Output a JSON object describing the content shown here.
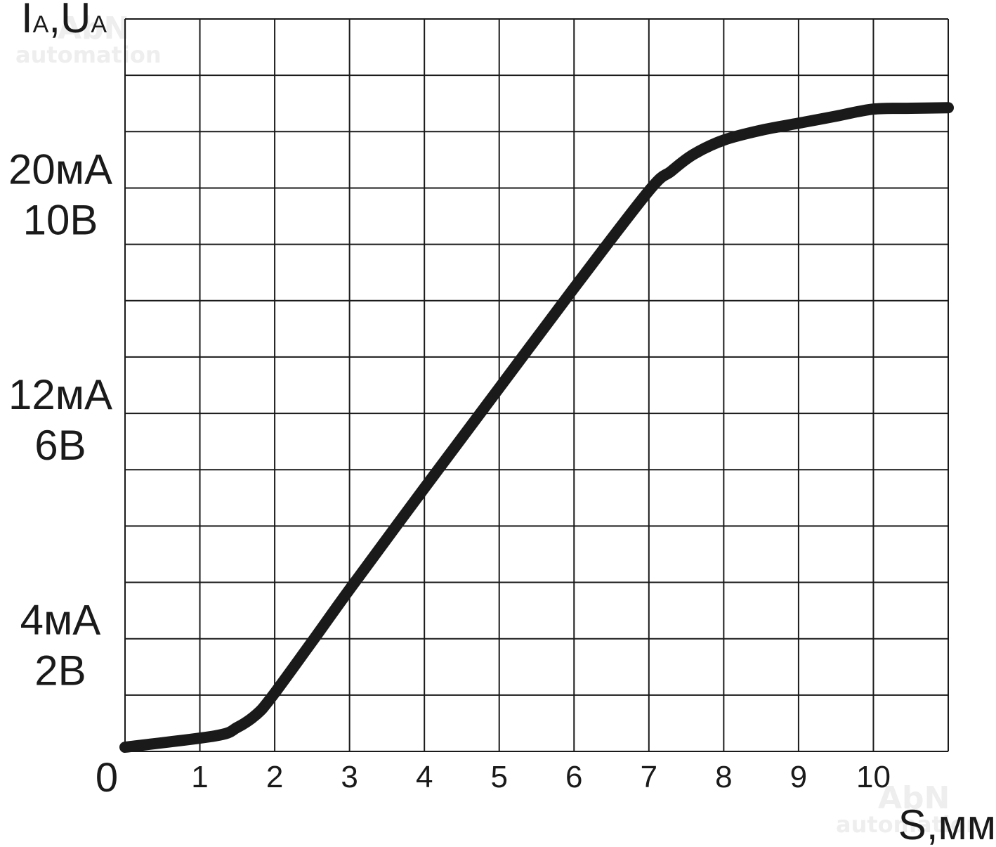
{
  "chart_data": {
    "type": "line",
    "title": "",
    "ylabel": {
      "main1": "I",
      "sub1": "A",
      "sep": ",",
      "main2": "U",
      "sub2": "A"
    },
    "xlabel": "S,мм",
    "origin_label": "0",
    "xlim": [
      0,
      11
    ],
    "ylim": [
      0,
      26
    ],
    "grid": true,
    "x_ticks": [
      {
        "value": 1,
        "label": "1"
      },
      {
        "value": 2,
        "label": "2"
      },
      {
        "value": 3,
        "label": "3"
      },
      {
        "value": 4,
        "label": "4"
      },
      {
        "value": 5,
        "label": "5"
      },
      {
        "value": 6,
        "label": "6"
      },
      {
        "value": 7,
        "label": "7"
      },
      {
        "value": 8,
        "label": "8"
      },
      {
        "value": 9,
        "label": "9"
      },
      {
        "value": 10,
        "label": "10"
      }
    ],
    "y_ticks": [
      {
        "value": 4,
        "lines": [
          "4мА",
          "2В"
        ]
      },
      {
        "value": 12,
        "lines": [
          "12мА",
          "6В"
        ]
      },
      {
        "value": 20,
        "lines": [
          "20мА",
          "10В"
        ]
      }
    ],
    "series": [
      {
        "color": "#1a1a1a",
        "x": [
          0,
          1.2,
          1.5,
          1.75,
          1.95,
          2.5,
          3,
          4,
          5,
          6,
          7,
          7.3,
          7.6,
          8,
          8.5,
          9,
          9.5,
          10,
          10.5,
          11
        ],
        "y": [
          0.15,
          0.55,
          0.85,
          1.3,
          1.9,
          3.9,
          5.75,
          9.35,
          12.9,
          16.45,
          19.9,
          20.6,
          21.2,
          21.7,
          22.05,
          22.3,
          22.55,
          22.8,
          22.83,
          22.85
        ]
      }
    ],
    "watermarks": [
      {
        "line1": "AbN",
        "line2": "automation",
        "position": "top-left"
      },
      {
        "line1": "AbN",
        "line2": "automation",
        "position": "bottom-right"
      }
    ]
  }
}
